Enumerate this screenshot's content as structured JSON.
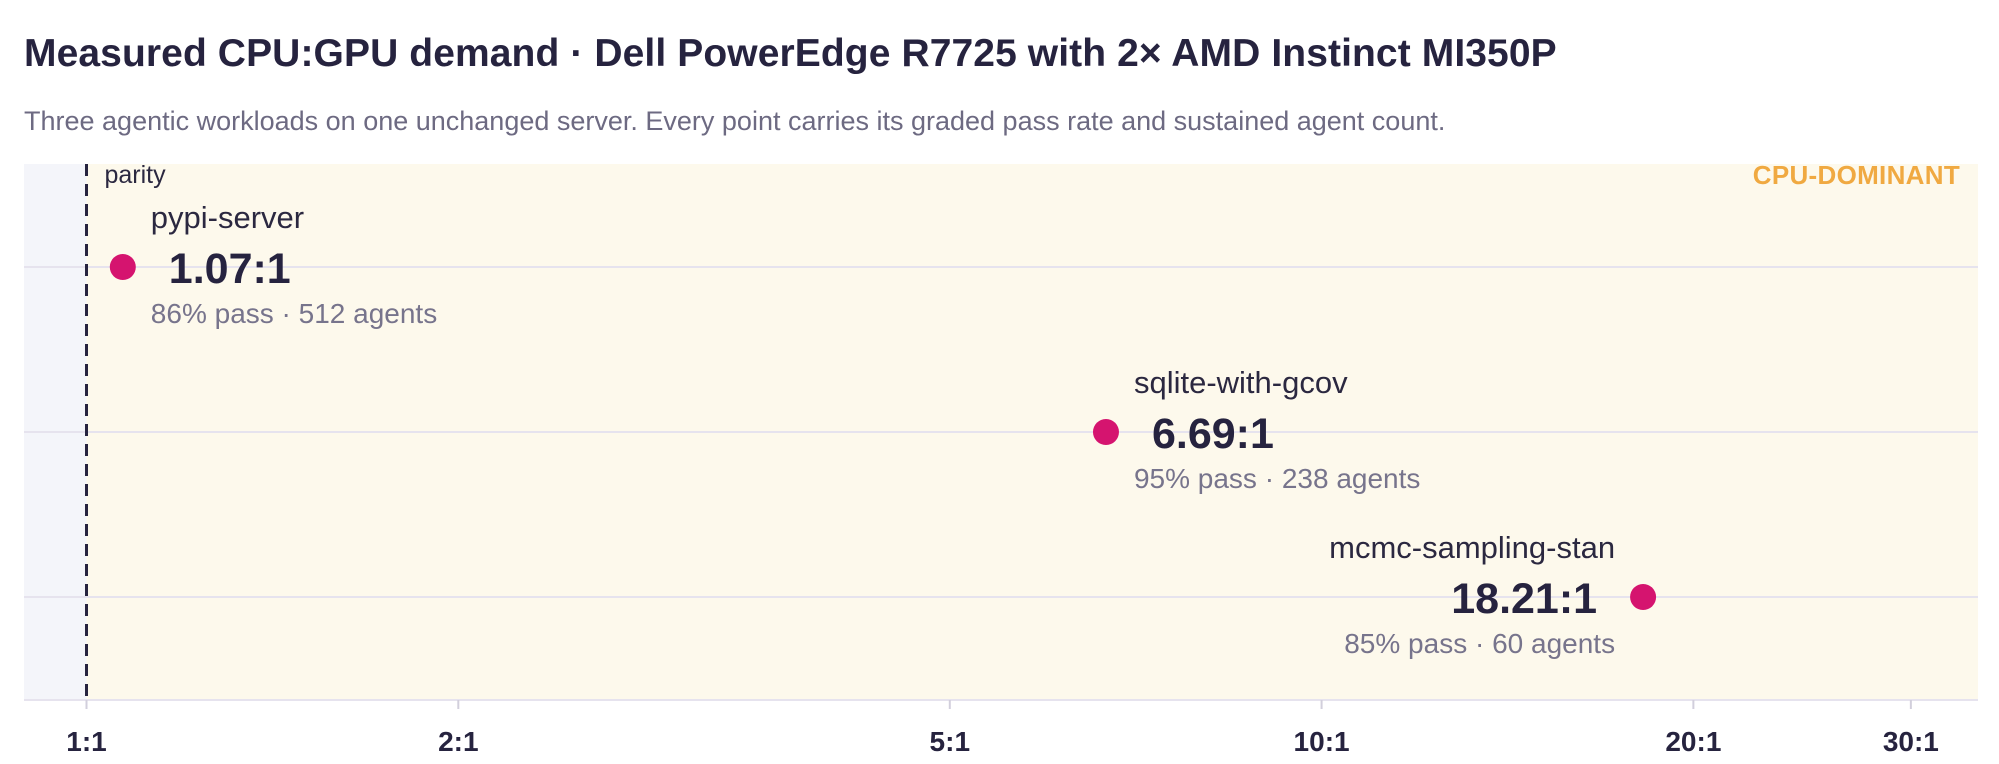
{
  "header": {
    "title": "Measured CPU:GPU demand  ·  Dell PowerEdge R7725 with 2× AMD Instinct MI350P",
    "subtitle": "Three agentic workloads on one unchanged server. Every point carries its graded pass rate and sustained agent count."
  },
  "chart_data": {
    "type": "scatter",
    "x_scale": "log",
    "xlim": [
      0.89,
      34
    ],
    "ticks": [
      {
        "value": 1,
        "label": "1:1"
      },
      {
        "value": 2,
        "label": "2:1"
      },
      {
        "value": 5,
        "label": "5:1"
      },
      {
        "value": 10,
        "label": "10:1"
      },
      {
        "value": 20,
        "label": "20:1"
      },
      {
        "value": 30,
        "label": "30:1"
      }
    ],
    "parity": {
      "value": 1,
      "label": "parity"
    },
    "region_label": "CPU-DOMINANT",
    "grid": true,
    "points": [
      {
        "name": "pypi-server",
        "ratio": 1.07,
        "ratio_label": "1.07:1",
        "pass_label": "86% pass",
        "agents_label": "512 agents",
        "label_side": "right"
      },
      {
        "name": "sqlite-with-gcov",
        "ratio": 6.69,
        "ratio_label": "6.69:1",
        "pass_label": "95% pass",
        "agents_label": "238 agents",
        "label_side": "right"
      },
      {
        "name": "mcmc-sampling-stan",
        "ratio": 18.21,
        "ratio_label": "18.21:1",
        "pass_label": "85% pass",
        "agents_label": "60 agents",
        "label_side": "left"
      }
    ],
    "colors": {
      "point": "#d5146f",
      "region_fill": "#fdf9ec",
      "left_fill": "#f4f5fa",
      "grid": "#e6e3ee",
      "parity_line": "#26233f",
      "region_label": "#f0a941"
    }
  }
}
